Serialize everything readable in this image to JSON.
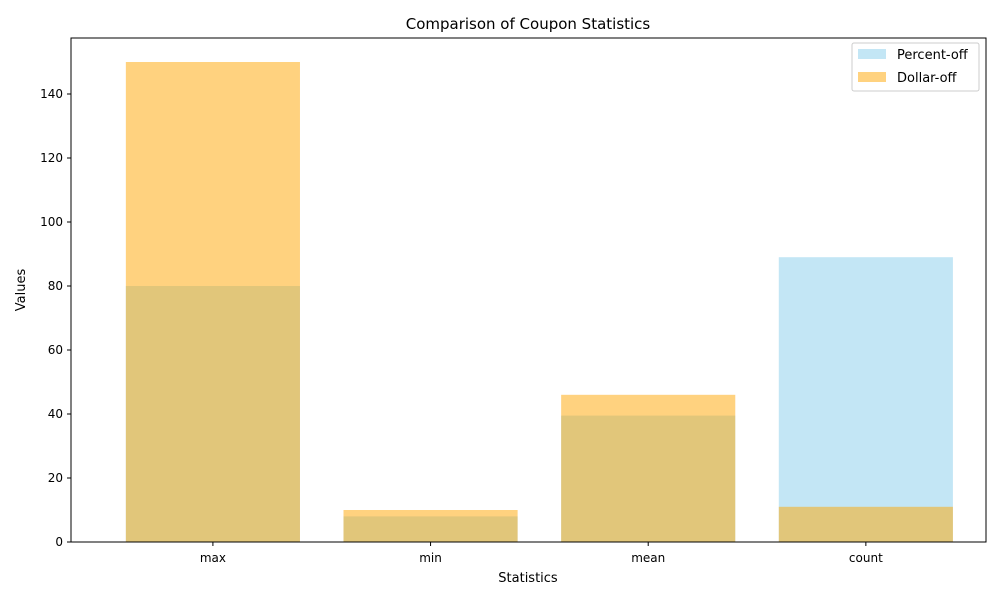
{
  "chart_data": {
    "type": "bar",
    "title": "Comparison of Coupon Statistics",
    "xlabel": "Statistics",
    "ylabel": "Values",
    "categories": [
      "max",
      "min",
      "mean",
      "count"
    ],
    "series": [
      {
        "name": "Percent-off",
        "values": [
          80,
          8,
          39.5,
          89
        ],
        "color": "#87CEEB",
        "opacity": 0.5
      },
      {
        "name": "Dollar-off",
        "values": [
          150,
          10,
          46,
          11
        ],
        "color": "#FFA500",
        "opacity": 0.5
      }
    ],
    "ylim": [
      0,
      157.5
    ],
    "yticks": [
      0,
      20,
      40,
      60,
      80,
      100,
      120,
      140
    ],
    "bar_layout": "overlapping",
    "legend": "top-right",
    "grid": false
  }
}
